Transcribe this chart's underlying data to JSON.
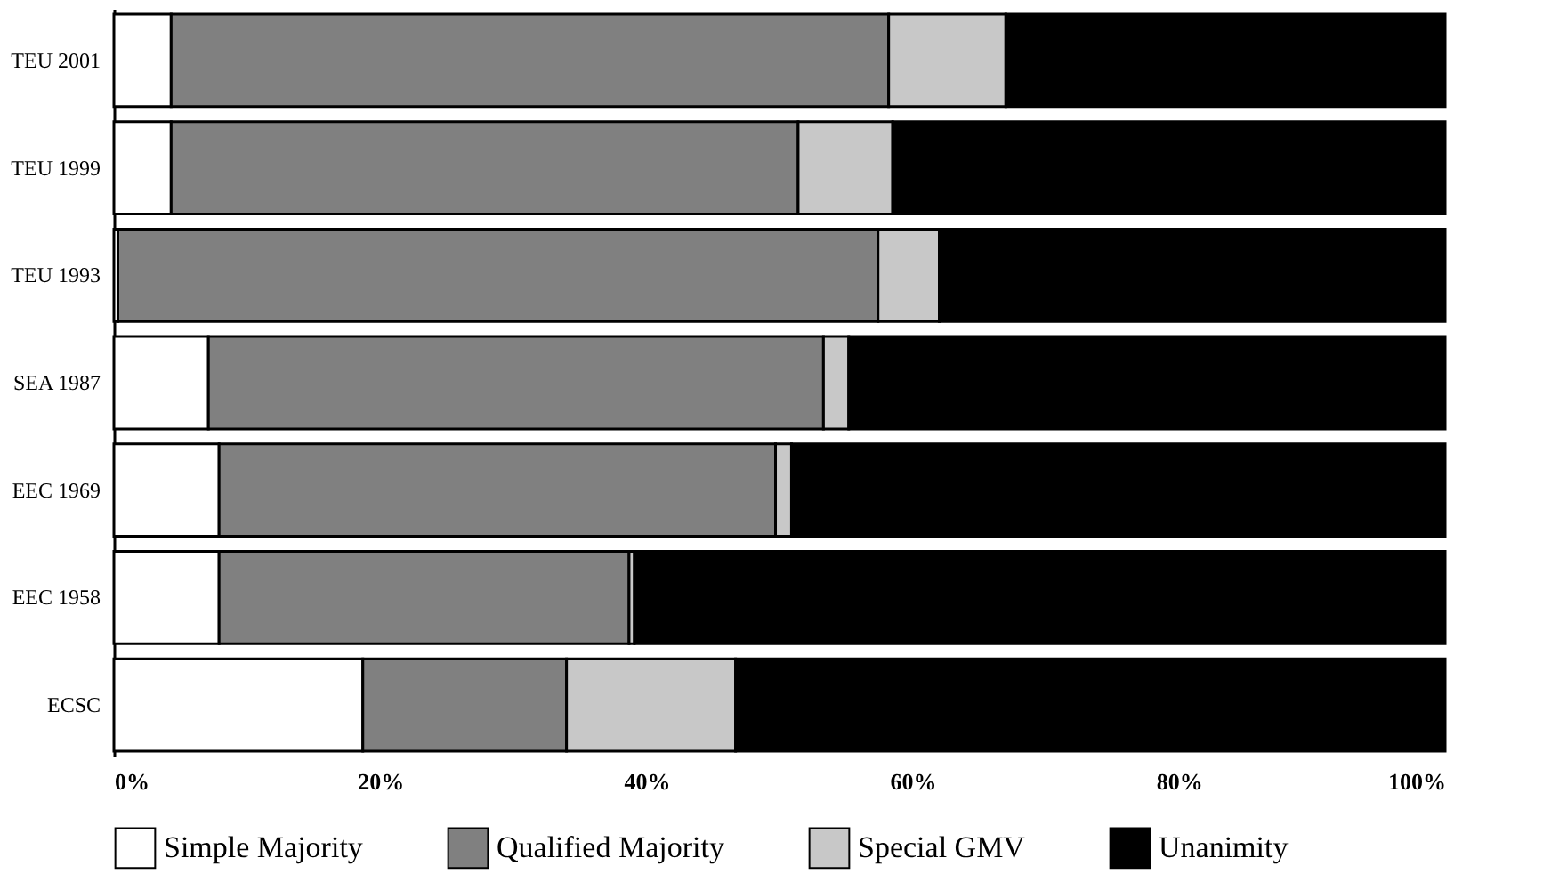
{
  "chart_data": {
    "type": "bar",
    "orientation": "horizontal",
    "stacked": true,
    "categories": [
      "TEU 2001",
      "TEU 1999",
      "TEU 1993",
      "SEA 1987",
      "EEC 1969",
      "EEC 1958",
      "ECSC"
    ],
    "series": [
      {
        "name": "Simple Majority",
        "color": "#ffffff",
        "values": [
          4.3,
          4.3,
          0.3,
          7.1,
          7.9,
          7.9,
          18.7
        ]
      },
      {
        "name": "Qualified Majority",
        "color": "#808080",
        "values": [
          53.9,
          47.1,
          57.1,
          46.2,
          41.8,
          30.8,
          15.3
        ]
      },
      {
        "name": "Special GMV",
        "color": "#c8c8c8",
        "values": [
          8.8,
          7.1,
          4.6,
          1.9,
          1.2,
          0.4,
          12.7
        ]
      },
      {
        "name": "Unanimity",
        "color": "#000000",
        "values": [
          33.0,
          41.5,
          38.0,
          44.8,
          49.1,
          60.9,
          53.3
        ]
      }
    ],
    "xlim": [
      0,
      100
    ],
    "xticks": [
      {
        "value": 0,
        "label": "0%"
      },
      {
        "value": 20,
        "label": "20%"
      },
      {
        "value": 40,
        "label": "40%"
      },
      {
        "value": 60,
        "label": "60%"
      },
      {
        "value": 80,
        "label": "80%"
      },
      {
        "value": 100,
        "label": "100%"
      }
    ],
    "legend": "bottom",
    "grid": false
  }
}
